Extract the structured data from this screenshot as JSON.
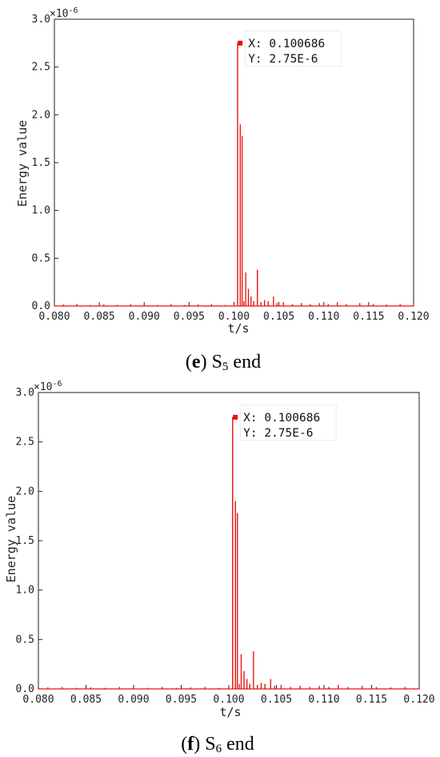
{
  "figure": {
    "panels": [
      {
        "caption_letter": "e",
        "caption_name": "S",
        "caption_sub": "5",
        "caption_rest": " end"
      },
      {
        "caption_letter": "f",
        "caption_name": "S",
        "caption_sub": "6",
        "caption_rest": " end"
      }
    ]
  },
  "chart_data": [
    {
      "type": "line",
      "title": "",
      "xlabel": "t/s",
      "ylabel": "Energy value",
      "y_multiplier": "×10-6",
      "xlim": [
        0.08,
        0.12
      ],
      "ylim": [
        0,
        3.0
      ],
      "x_ticks": [
        "0.080",
        "0.085",
        "0.090",
        "0.095",
        "0.100",
        "0.105",
        "0.110",
        "0.115",
        "0.120"
      ],
      "y_ticks": [
        "0.0",
        "0.5",
        "1.0",
        "1.5",
        "2.0",
        "2.5",
        "3.0"
      ],
      "line_color": "#e8120c",
      "grid": false,
      "series": [
        {
          "x": [
            0.08,
            0.081,
            0.0825,
            0.084,
            0.0855,
            0.087,
            0.0885,
            0.09,
            0.0915,
            0.093,
            0.0945,
            0.096,
            0.0975,
            0.099,
            0.1,
            0.1004,
            0.1007,
            0.1009,
            0.1011,
            0.1013,
            0.1016,
            0.1019,
            0.1022,
            0.1026,
            0.103,
            0.1034,
            0.1038,
            0.1044,
            0.1048,
            0.1055,
            0.1065,
            0.1075,
            0.1085,
            0.1095,
            0.1105,
            0.1115,
            0.1125,
            0.114,
            0.1155,
            0.117,
            0.1185,
            0.12
          ],
          "y": [
            0.01,
            0.015,
            0.02,
            0.01,
            0.015,
            0.01,
            0.02,
            0.015,
            0.01,
            0.02,
            0.01,
            0.015,
            0.02,
            0.01,
            0.02,
            2.75,
            1.9,
            1.78,
            0.05,
            0.35,
            0.18,
            0.1,
            0.05,
            0.38,
            0.04,
            0.06,
            0.05,
            0.1,
            0.03,
            0.04,
            0.02,
            0.03,
            0.02,
            0.03,
            0.02,
            0.04,
            0.02,
            0.03,
            0.02,
            0.015,
            0.02,
            0.01
          ]
        }
      ],
      "annotation": {
        "marker_x": 0.100686,
        "marker_y": 2.75,
        "x_text": "X: 0.100686",
        "y_text": "Y: 2.75E-6"
      }
    },
    {
      "type": "line",
      "title": "",
      "xlabel": "t/s",
      "ylabel": "Energy value",
      "y_multiplier": "×10-6",
      "xlim": [
        0.08,
        0.12
      ],
      "ylim": [
        0,
        3.0
      ],
      "x_ticks": [
        "0.080",
        "0.085",
        "0.090",
        "0.095",
        "0.100",
        "0.105",
        "0.110",
        "0.115",
        "0.120"
      ],
      "y_ticks": [
        "0.0",
        "0.5",
        "1.0",
        "1.5",
        "2.0",
        "2.5",
        "3.0"
      ],
      "line_color": "#e8120c",
      "grid": false,
      "series": [
        {
          "x": [
            0.08,
            0.081,
            0.0825,
            0.084,
            0.0855,
            0.087,
            0.0885,
            0.09,
            0.0915,
            0.093,
            0.0945,
            0.096,
            0.0975,
            0.099,
            0.1,
            0.1004,
            0.1007,
            0.1009,
            0.1011,
            0.1013,
            0.1016,
            0.1019,
            0.1022,
            0.1026,
            0.103,
            0.1034,
            0.1038,
            0.1044,
            0.1048,
            0.1055,
            0.1065,
            0.1075,
            0.1085,
            0.1095,
            0.1105,
            0.1115,
            0.1125,
            0.114,
            0.1155,
            0.117,
            0.1185,
            0.12
          ],
          "y": [
            0.01,
            0.015,
            0.02,
            0.01,
            0.015,
            0.01,
            0.02,
            0.015,
            0.01,
            0.02,
            0.01,
            0.015,
            0.02,
            0.01,
            0.02,
            2.75,
            1.9,
            1.78,
            0.05,
            0.35,
            0.18,
            0.1,
            0.05,
            0.38,
            0.04,
            0.06,
            0.05,
            0.1,
            0.03,
            0.04,
            0.02,
            0.03,
            0.02,
            0.03,
            0.02,
            0.04,
            0.02,
            0.03,
            0.02,
            0.015,
            0.02,
            0.01
          ]
        }
      ],
      "annotation": {
        "marker_x": 0.100686,
        "marker_y": 2.75,
        "x_text": "X: 0.100686",
        "y_text": "Y: 2.75E-6"
      }
    }
  ]
}
